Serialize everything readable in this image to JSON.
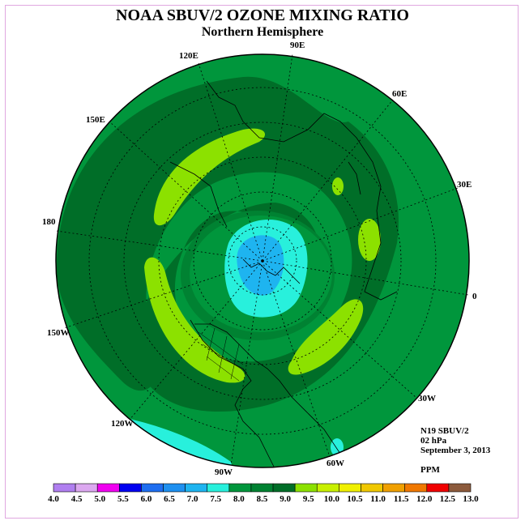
{
  "header": {
    "title": "NOAA SBUV/2 OZONE MIXING RATIO",
    "subtitle": "Northern Hemisphere"
  },
  "longitudes": {
    "lon_90e": "90E",
    "lon_60e": "60E",
    "lon_30e": "30E",
    "lon_0": "0",
    "lon_30w": "30W",
    "lon_60w": "60W",
    "lon_90w": "90W",
    "lon_120w": "120W",
    "lon_150w": "150W",
    "lon_180": "180",
    "lon_150e": "150E",
    "lon_120e": "120E"
  },
  "info": {
    "instrument": "N19 SBUV/2",
    "level": "02 hPa",
    "date": "September 3, 2013",
    "units": "PPM"
  },
  "colorbar": {
    "colors": [
      "#b07ff0",
      "#dca8f0",
      "#f000f0",
      "#0000f0",
      "#1e6ef0",
      "#1e90f0",
      "#1eb4f0",
      "#28f0dc",
      "#00963c",
      "#008232",
      "#006e28",
      "#8ce100",
      "#c8f000",
      "#f0f000",
      "#f0c800",
      "#f0a000",
      "#f07800",
      "#f00000",
      "#8c5a3c"
    ],
    "labels": [
      "4.0",
      "4.5",
      "5.0",
      "5.5",
      "6.0",
      "6.5",
      "7.0",
      "7.5",
      "8.0",
      "8.5",
      "9.0",
      "9.5",
      "10.0",
      "10.5",
      "11.0",
      "11.5",
      "12.0",
      "12.5",
      "13.0"
    ]
  },
  "map": {
    "field_colors": {
      "level_8_0": "#00963c",
      "level_8_5": "#008232",
      "level_9_0": "#006e28",
      "level_9_5": "#8ce100",
      "level_7_5": "#28f0dc",
      "level_7_0": "#1eb4f0"
    }
  }
}
